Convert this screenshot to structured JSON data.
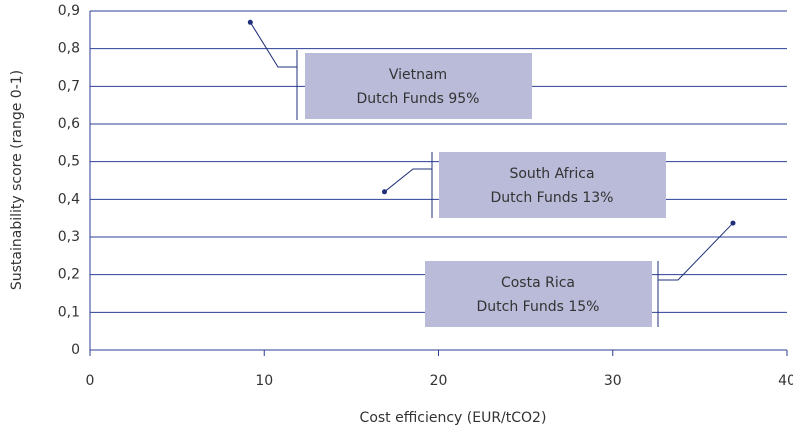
{
  "chart_data": {
    "type": "scatter",
    "xlabel": "Cost efficiency (EUR/tCO2)",
    "ylabel": "Sustainability score (range 0-1)",
    "x": [
      9.2,
      16.9,
      36.9
    ],
    "values": [
      0.87,
      0.42,
      0.337
    ],
    "color": "#1f2f7a",
    "grid": true,
    "xlim": [
      0,
      40
    ],
    "xticks": [
      0,
      10,
      20,
      30,
      40
    ],
    "ylim": [
      0,
      0.9
    ],
    "yticks": [
      0,
      {
        "value": 0.1,
        "label": "0,1"
      },
      {
        "value": 0.2,
        "label": "0,2"
      },
      {
        "value": 0.3,
        "label": "0,3"
      },
      {
        "value": 0.4,
        "label": "0,4"
      },
      {
        "value": 0.5,
        "label": "0,5"
      },
      {
        "value": 0.6,
        "label": "0,6"
      },
      {
        "value": 0.7,
        "label": "0,7"
      },
      {
        "value": 0.8,
        "label": "0,8"
      },
      {
        "value": 0.9,
        "label": "0,9"
      }
    ],
    "annotations": [
      {
        "lines": [
          "Vietnam",
          "Dutch Funds 95%"
        ]
      },
      {
        "lines": [
          "South Africa",
          "Dutch Funds 13%"
        ]
      },
      {
        "lines": [
          "Costa Rica",
          "Dutch Funds 15%"
        ]
      }
    ]
  }
}
